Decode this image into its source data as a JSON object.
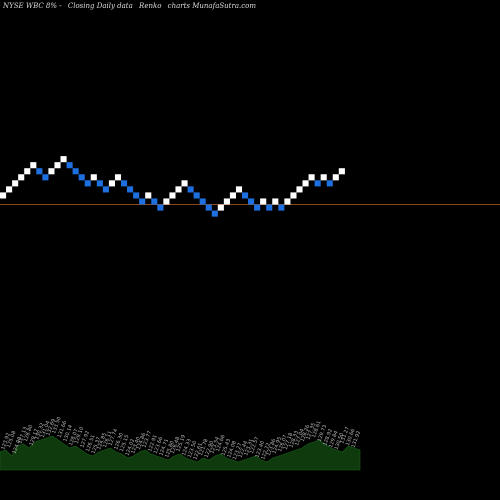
{
  "header": {
    "symbol": "NYSE WBC 8% -",
    "type": "Closing Daily data",
    "style": "Renko",
    "site": "charts MunafaSutra.com"
  },
  "colors": {
    "up": "#ffffff",
    "down": "#1e6fe0",
    "refline": "#8b4a1c",
    "volume": "#0e3a0e",
    "volume_edge": "#1b5e1b",
    "label": "#bbbbbb"
  },
  "chart_data": {
    "type": "renko",
    "brick_size": 1,
    "bricks": [
      {
        "direction": "up",
        "level": 1
      },
      {
        "direction": "up",
        "level": 2
      },
      {
        "direction": "up",
        "level": 3
      },
      {
        "direction": "up",
        "level": 4
      },
      {
        "direction": "up",
        "level": 5
      },
      {
        "direction": "up",
        "level": 6
      },
      {
        "direction": "down",
        "level": 5
      },
      {
        "direction": "down",
        "level": 4
      },
      {
        "direction": "up",
        "level": 5
      },
      {
        "direction": "up",
        "level": 6
      },
      {
        "direction": "up",
        "level": 7
      },
      {
        "direction": "down",
        "level": 6
      },
      {
        "direction": "down",
        "level": 5
      },
      {
        "direction": "down",
        "level": 4
      },
      {
        "direction": "down",
        "level": 3
      },
      {
        "direction": "up",
        "level": 4
      },
      {
        "direction": "down",
        "level": 3
      },
      {
        "direction": "down",
        "level": 2
      },
      {
        "direction": "up",
        "level": 3
      },
      {
        "direction": "up",
        "level": 4
      },
      {
        "direction": "down",
        "level": 3
      },
      {
        "direction": "down",
        "level": 2
      },
      {
        "direction": "down",
        "level": 1
      },
      {
        "direction": "down",
        "level": 0
      },
      {
        "direction": "up",
        "level": 1
      },
      {
        "direction": "down",
        "level": 0
      },
      {
        "direction": "down",
        "level": -1
      },
      {
        "direction": "up",
        "level": 0
      },
      {
        "direction": "up",
        "level": 1
      },
      {
        "direction": "up",
        "level": 2
      },
      {
        "direction": "up",
        "level": 3
      },
      {
        "direction": "down",
        "level": 2
      },
      {
        "direction": "down",
        "level": 1
      },
      {
        "direction": "down",
        "level": 0
      },
      {
        "direction": "down",
        "level": -1
      },
      {
        "direction": "down",
        "level": -2
      },
      {
        "direction": "up",
        "level": -1
      },
      {
        "direction": "up",
        "level": 0
      },
      {
        "direction": "up",
        "level": 1
      },
      {
        "direction": "up",
        "level": 2
      },
      {
        "direction": "down",
        "level": 1
      },
      {
        "direction": "down",
        "level": 0
      },
      {
        "direction": "down",
        "level": -1
      },
      {
        "direction": "up",
        "level": 0
      },
      {
        "direction": "down",
        "level": -1
      },
      {
        "direction": "up",
        "level": 0
      },
      {
        "direction": "down",
        "level": -1
      },
      {
        "direction": "up",
        "level": 0
      },
      {
        "direction": "up",
        "level": 1
      },
      {
        "direction": "up",
        "level": 2
      },
      {
        "direction": "up",
        "level": 3
      },
      {
        "direction": "up",
        "level": 4
      },
      {
        "direction": "down",
        "level": 3
      },
      {
        "direction": "up",
        "level": 4
      },
      {
        "direction": "down",
        "level": 3
      },
      {
        "direction": "up",
        "level": 4
      },
      {
        "direction": "up",
        "level": 5
      }
    ],
    "reference_level": 0,
    "volume_profile": [
      18,
      20,
      14,
      24,
      26,
      22,
      28,
      30,
      32,
      34,
      30,
      26,
      22,
      24,
      20,
      16,
      14,
      18,
      20,
      22,
      18,
      16,
      12,
      14,
      18,
      20,
      16,
      14,
      12,
      10,
      14,
      16,
      12,
      10,
      8,
      12,
      10,
      14,
      16,
      12,
      10,
      8,
      10,
      12,
      14,
      10,
      8,
      12,
      14,
      16,
      18,
      20,
      22,
      26,
      28,
      30,
      26,
      22,
      20,
      18,
      24,
      22,
      20
    ],
    "x_labels": [
      "123.92",
      "125.08",
      "124.00",
      "127.13",
      "128.80",
      "129.17",
      "130.32",
      "131.04",
      "132.69",
      "133.50",
      "131.66",
      "130.14",
      "128.07",
      "129.10",
      "127.92",
      "126.51",
      "125.37",
      "124.85",
      "126.11",
      "127.74",
      "126.30",
      "125.15",
      "124.02",
      "123.40",
      "124.86",
      "123.77",
      "122.91",
      "123.66",
      "124.71",
      "125.80",
      "126.48",
      "125.19",
      "124.33",
      "123.50",
      "122.61",
      "121.78",
      "122.90",
      "123.54",
      "124.66",
      "125.43",
      "124.08",
      "123.27",
      "122.44",
      "123.31",
      "122.57",
      "123.40",
      "122.72",
      "123.86",
      "124.95",
      "126.07",
      "127.18",
      "128.33",
      "127.04",
      "128.26",
      "127.35",
      "128.61",
      "129.73",
      "128.92",
      "129.84",
      "130.50",
      "131.27",
      "130.66",
      "131.92"
    ]
  }
}
